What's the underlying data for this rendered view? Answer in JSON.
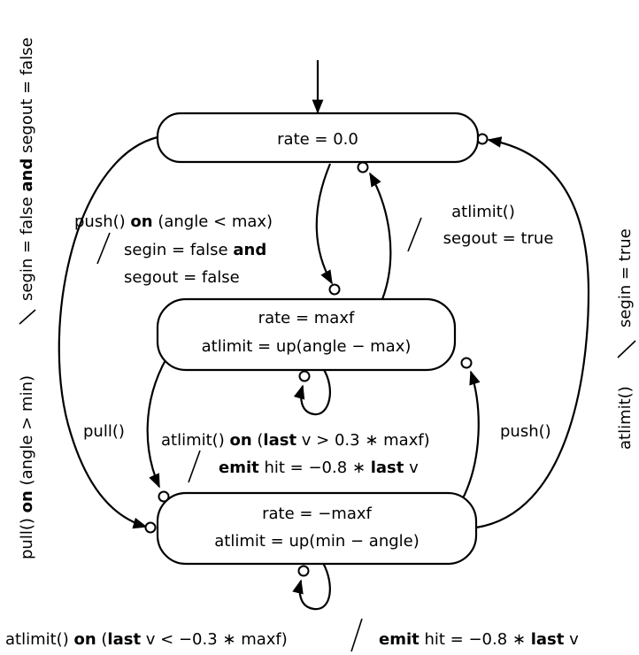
{
  "states": {
    "top": {
      "line1": "rate = 0.0"
    },
    "mid": {
      "line1": "rate = maxf",
      "line2": "atlimit = up(angle − max)"
    },
    "bot": {
      "line1": "rate = −maxf",
      "line2": "atlimit = up(min − angle)"
    }
  },
  "labels": {
    "top_to_mid": {
      "l1_fn": "push()",
      "l1_kw": "on",
      "l1_rest": "(angle < max)",
      "l2_a": "segin = false",
      "l2_kw": "and",
      "l3": "segout = false"
    },
    "mid_to_top": {
      "l1": "atlimit()",
      "l2": "segout = true"
    },
    "mid_to_bot": {
      "text": "pull()"
    },
    "bot_to_mid": {
      "text": "push()"
    },
    "mid_self": {
      "l1_fn": "atlimit()",
      "l1_kw": "on",
      "l1_open": "(",
      "l1_kw2": "last",
      "l1_rest": "v > 0.3 ∗ maxf)",
      "l2_kw": "emit",
      "l2_a": "hit = −0.8 ∗",
      "l2_kw2": "last",
      "l2_b": "v"
    },
    "bot_self": {
      "fn": "atlimit()",
      "kw": "on",
      "open": "(",
      "kw2": "last",
      "mid": "v < −0.3 ∗ maxf)",
      "kw3": "emit",
      "b": "hit = −0.8 ∗",
      "kw4": "last",
      "c": "v"
    },
    "left_outer": {
      "fn": "pull()",
      "kw": "on",
      "cond": "(angle > min)",
      "a": "segin = false",
      "kw2": "and",
      "b": "segout = false"
    },
    "right_outer": {
      "fn": "atlimit()",
      "cond": "segin = true"
    }
  }
}
